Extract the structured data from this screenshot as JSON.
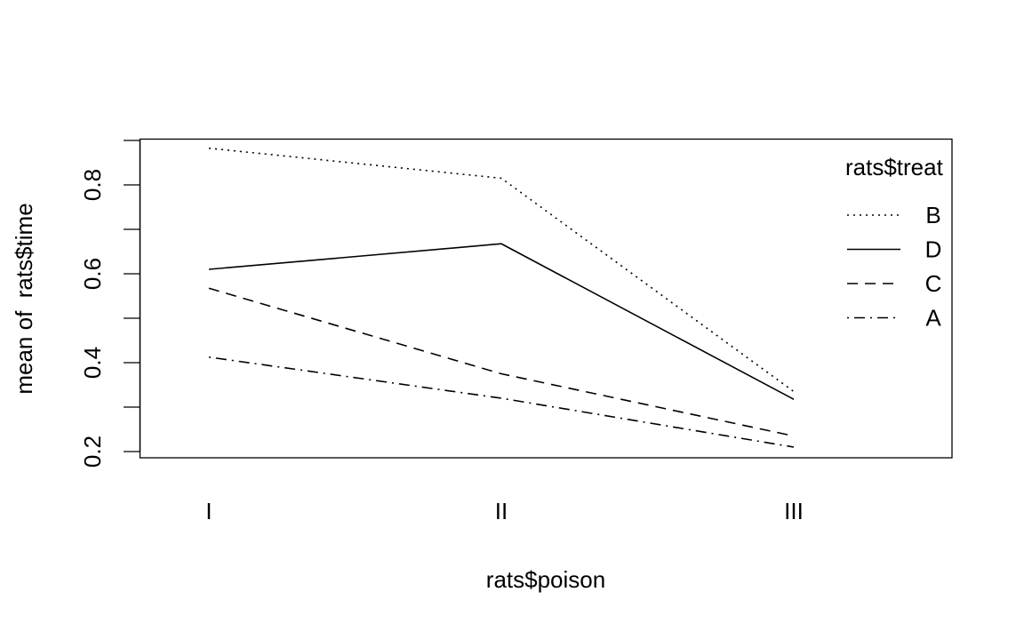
{
  "chart_data": {
    "type": "line",
    "title": "",
    "xlabel": "rats$poison",
    "ylabel": "mean of  rats$time",
    "categories": [
      "I",
      "II",
      "III"
    ],
    "ylim": [
      0.2,
      0.9
    ],
    "yticks": [
      0.2,
      0.3,
      0.4,
      0.5,
      0.6,
      0.7,
      0.8,
      0.9
    ],
    "ytick_labels": [
      "0.2",
      "",
      "0.4",
      "",
      "0.6",
      "",
      "0.8",
      ""
    ],
    "grid": false,
    "legend_title": "rats$treat",
    "legend_position": "top-right",
    "series": [
      {
        "name": "B",
        "linetype": "dotted",
        "values": [
          0.8825,
          0.815,
          0.335
        ]
      },
      {
        "name": "D",
        "linetype": "solid",
        "values": [
          0.61,
          0.6675,
          0.3175
        ]
      },
      {
        "name": "C",
        "linetype": "dashed",
        "values": [
          0.5675,
          0.375,
          0.235
        ]
      },
      {
        "name": "A",
        "linetype": "dotdash",
        "values": [
          0.4125,
          0.32,
          0.21
        ]
      }
    ]
  }
}
